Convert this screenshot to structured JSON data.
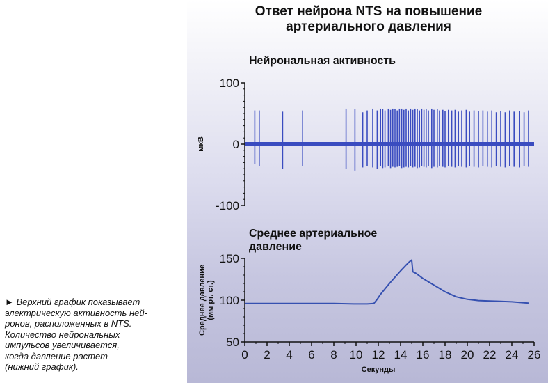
{
  "title_line1": "Ответ нейрона NTS на повышение",
  "title_line2": "артериального давления",
  "caption_lines": [
    "► Верхний график показывает",
    "электрическую активность ней-",
    "ронов, расположенных в NTS.",
    "Количество нейрональных",
    "импульсов увеличивается,",
    "когда давление растет",
    "(нижний график)."
  ],
  "colors": {
    "trace": "#3a4cc0",
    "pressure": "#3550b0",
    "axis": "#111111"
  },
  "chart_data": [
    {
      "type": "line",
      "title": "Нейрональная активность",
      "ylabel": "мкВ",
      "ylim": [
        -100,
        100
      ],
      "yticks": [
        "100",
        "0",
        "-100"
      ],
      "xlim": [
        0,
        26
      ],
      "baseline": 0,
      "spikes": {
        "x": [
          0.9,
          1.3,
          3.4,
          5.2,
          9.1,
          9.9,
          10.6,
          11.0,
          11.5,
          11.9,
          12.2,
          12.4,
          12.6,
          12.9,
          13.1,
          13.3,
          13.5,
          13.7,
          13.9,
          14.1,
          14.3,
          14.5,
          14.7,
          14.9,
          15.1,
          15.3,
          15.5,
          15.7,
          15.9,
          16.1,
          16.3,
          16.5,
          16.8,
          17.0,
          17.3,
          17.5,
          17.8,
          18.0,
          18.3,
          18.6,
          18.9,
          19.2,
          19.5,
          19.9,
          20.2,
          20.6,
          21.0,
          21.4,
          21.8,
          22.2,
          22.6,
          23.0,
          23.4,
          23.8,
          24.2,
          24.7,
          25.1,
          25.5
        ],
        "up": [
          55,
          55,
          53,
          55,
          58,
          57,
          52,
          55,
          58,
          55,
          58,
          57,
          55,
          58,
          56,
          58,
          57,
          55,
          58,
          58,
          56,
          58,
          55,
          58,
          56,
          58,
          57,
          55,
          58,
          56,
          57,
          55,
          58,
          56,
          57,
          55,
          56,
          54,
          56,
          55,
          56,
          53,
          55,
          56,
          53,
          55,
          54,
          55,
          53,
          55,
          52,
          54,
          52,
          55,
          53,
          54,
          52,
          55
        ],
        "down": [
          -32,
          -36,
          -40,
          -36,
          -40,
          -43,
          -38,
          -36,
          -38,
          -40,
          -36,
          -39,
          -38,
          -36,
          -39,
          -37,
          -38,
          -37,
          -36,
          -39,
          -38,
          -37,
          -38,
          -36,
          -38,
          -37,
          -39,
          -38,
          -36,
          -37,
          -38,
          -36,
          -39,
          -37,
          -38,
          -36,
          -37,
          -38,
          -36,
          -37,
          -38,
          -36,
          -37,
          -38,
          -36,
          -37,
          -38,
          -36,
          -37,
          -38,
          -36,
          -37,
          -38,
          -36,
          -37,
          -38,
          -36,
          -37
        ]
      }
    },
    {
      "type": "line",
      "title_line1": "Среднее артериальное",
      "title_line2": "давление",
      "ylabel_line1": "Среднее давление",
      "ylabel_line2": "(мм рт. ст.)",
      "xlabel": "Секунды",
      "ylim": [
        50,
        150
      ],
      "yticks": [
        "150",
        "100",
        "50"
      ],
      "xlim": [
        0,
        26
      ],
      "xticks": [
        "0",
        "2",
        "4",
        "6",
        "8",
        "10",
        "12",
        "14",
        "16",
        "18",
        "20",
        "22",
        "24",
        "26"
      ],
      "series": [
        {
          "x": [
            0,
            2,
            4,
            6,
            8,
            10,
            11,
            11.6,
            11.9,
            12.2,
            13,
            14,
            14.5,
            14.8,
            15.0,
            15.1,
            15.4,
            16,
            17,
            18,
            19,
            20,
            21,
            22,
            23,
            24,
            25.5
          ],
          "values": [
            96,
            96,
            96,
            96,
            96,
            95.5,
            95.5,
            96,
            101,
            107,
            120,
            135,
            142,
            146,
            148,
            134,
            132,
            126,
            118,
            110,
            104,
            101,
            99.5,
            99,
            98.5,
            98,
            96.5
          ]
        }
      ]
    }
  ]
}
